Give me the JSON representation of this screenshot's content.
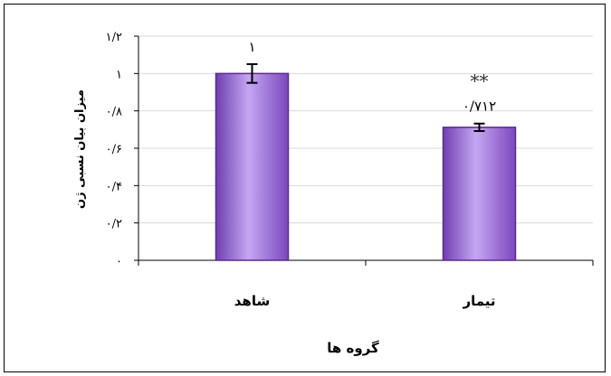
{
  "chart_data": {
    "type": "bar",
    "categories": [
      "شاهد",
      "تیمار"
    ],
    "values": [
      1,
      0.712
    ],
    "error": [
      0.05,
      0.02
    ],
    "data_labels": [
      "۱",
      "۰/۷۱۲"
    ],
    "significance": [
      "",
      "**"
    ],
    "xlabel": "گروه ها",
    "ylabel": "میزان بیان نسبی ژن",
    "ylim": [
      0,
      1.2
    ],
    "yticks": [
      0,
      0.2,
      0.4,
      0.6,
      0.8,
      1,
      1.2
    ],
    "ytick_labels": [
      "۰",
      "۰/۲",
      "۰/۴",
      "۰/۶",
      "۰/۸",
      "۱",
      "۱/۲"
    ],
    "grid": true,
    "bar_color": "#9b6fd6",
    "bar_edge_color": "#5b2a8c"
  }
}
